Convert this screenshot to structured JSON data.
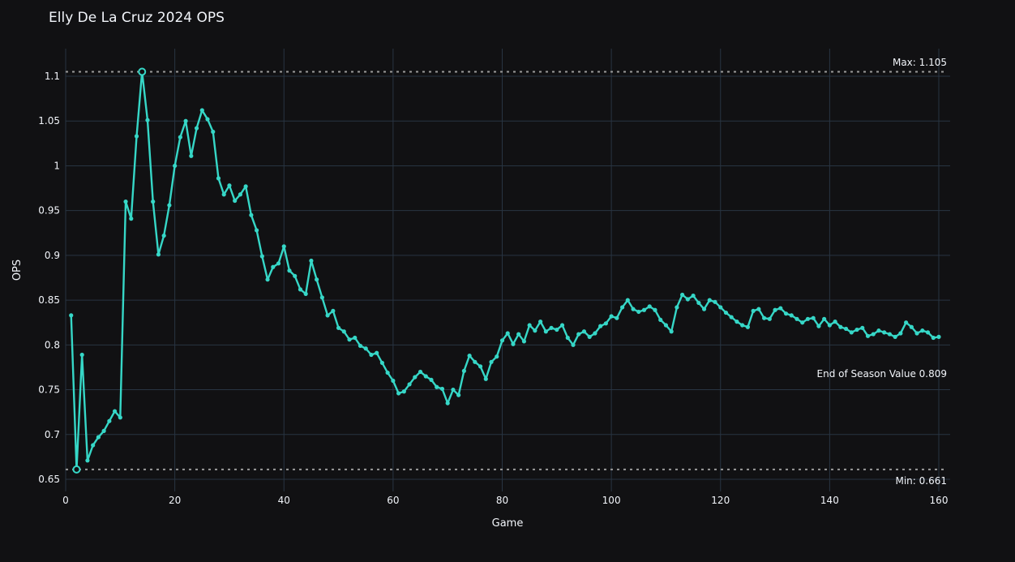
{
  "title": "Elly De La Cruz 2024 OPS",
  "colors": {
    "background": "#111113",
    "gridline": "#283442",
    "line": "#36d7c7",
    "reference_dotted": "#9a9a9a",
    "text": "#f2f5fa"
  },
  "chart_data": {
    "type": "line",
    "title": "Elly De La Cruz 2024 OPS",
    "xlabel": "Game",
    "ylabel": "OPS",
    "x_start": 1,
    "x_end": 160,
    "values": [
      0.833,
      0.661,
      0.789,
      0.671,
      0.688,
      0.697,
      0.704,
      0.715,
      0.726,
      0.719,
      0.96,
      0.941,
      1.033,
      1.105,
      1.051,
      0.96,
      0.901,
      0.922,
      0.956,
      1.0,
      1.032,
      1.05,
      1.011,
      1.042,
      1.062,
      1.052,
      1.038,
      0.986,
      0.968,
      0.978,
      0.961,
      0.968,
      0.977,
      0.945,
      0.928,
      0.899,
      0.873,
      0.887,
      0.891,
      0.91,
      0.883,
      0.877,
      0.862,
      0.857,
      0.894,
      0.873,
      0.853,
      0.833,
      0.838,
      0.819,
      0.815,
      0.806,
      0.808,
      0.799,
      0.796,
      0.789,
      0.791,
      0.78,
      0.769,
      0.76,
      0.746,
      0.748,
      0.756,
      0.764,
      0.77,
      0.765,
      0.761,
      0.753,
      0.751,
      0.735,
      0.75,
      0.744,
      0.771,
      0.788,
      0.781,
      0.776,
      0.762,
      0.781,
      0.787,
      0.805,
      0.813,
      0.801,
      0.812,
      0.804,
      0.822,
      0.816,
      0.826,
      0.815,
      0.819,
      0.817,
      0.822,
      0.808,
      0.8,
      0.812,
      0.815,
      0.809,
      0.813,
      0.821,
      0.824,
      0.832,
      0.83,
      0.842,
      0.85,
      0.84,
      0.837,
      0.839,
      0.843,
      0.839,
      0.828,
      0.822,
      0.815,
      0.842,
      0.856,
      0.851,
      0.855,
      0.847,
      0.84,
      0.85,
      0.848,
      0.842,
      0.836,
      0.831,
      0.826,
      0.822,
      0.82,
      0.838,
      0.84,
      0.83,
      0.829,
      0.839,
      0.841,
      0.835,
      0.833,
      0.829,
      0.825,
      0.829,
      0.83,
      0.821,
      0.829,
      0.822,
      0.826,
      0.82,
      0.818,
      0.814,
      0.817,
      0.819,
      0.81,
      0.812,
      0.816,
      0.814,
      0.812,
      0.809,
      0.813,
      0.825,
      0.82,
      0.813,
      0.816,
      0.814,
      0.808,
      0.809
    ],
    "ylim": [
      0.636,
      1.131
    ],
    "xlim": [
      0,
      162
    ],
    "grid": true,
    "legend_position": "none",
    "y_ticks": [
      {
        "label": "1.1",
        "value": 1.1
      },
      {
        "label": "1.05",
        "value": 1.05
      },
      {
        "label": "1",
        "value": 1.0
      },
      {
        "label": "0.95",
        "value": 0.95
      },
      {
        "label": "0.9",
        "value": 0.9
      },
      {
        "label": "0.85",
        "value": 0.85
      },
      {
        "label": "0.8",
        "value": 0.8
      },
      {
        "label": "0.75",
        "value": 0.75
      },
      {
        "label": "0.7",
        "value": 0.7
      },
      {
        "label": "0.65",
        "value": 0.65
      }
    ],
    "x_ticks": [
      {
        "label": "0",
        "value": 0
      },
      {
        "label": "20",
        "value": 20
      },
      {
        "label": "40",
        "value": 40
      },
      {
        "label": "60",
        "value": 60
      },
      {
        "label": "80",
        "value": 80
      },
      {
        "label": "100",
        "value": 100
      },
      {
        "label": "120",
        "value": 120
      },
      {
        "label": "140",
        "value": 140
      },
      {
        "label": "160",
        "value": 160
      }
    ],
    "annotations": {
      "max": {
        "label": "Max: 1.105",
        "value": 1.105
      },
      "min": {
        "label": "Min: 0.661",
        "value": 0.661
      },
      "end": {
        "label": "End of Season Value 0.809",
        "value": 0.809
      }
    }
  }
}
